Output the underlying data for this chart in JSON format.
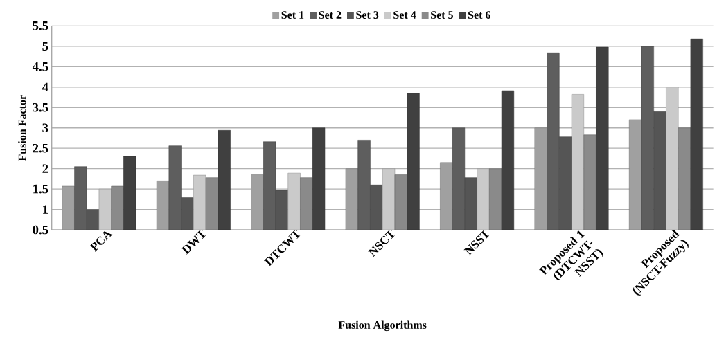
{
  "chart_data": {
    "type": "bar",
    "xlabel": "Fusion Algorithms",
    "ylabel": "Fusion Factor",
    "categories": [
      "PCA",
      "DWT",
      "DTCWT",
      "NSCT",
      "NSST",
      "Proposed 1 (DTCWT-NSST)",
      "Proposed (NSCT-Fuzzy)"
    ],
    "series": [
      {
        "name": "Set 1",
        "color": "#a0a0a0",
        "values": [
          1.57,
          1.7,
          1.85,
          2.0,
          2.15,
          3.0,
          3.2
        ]
      },
      {
        "name": "Set 2",
        "color": "#5e5e5e",
        "values": [
          2.05,
          2.56,
          2.66,
          2.7,
          3.0,
          4.84,
          5.0
        ]
      },
      {
        "name": "Set 3",
        "color": "#555555",
        "values": [
          1.0,
          1.29,
          1.47,
          1.6,
          1.78,
          2.78,
          3.4
        ]
      },
      {
        "name": "Set 4",
        "color": "#cacaca",
        "values": [
          1.5,
          1.84,
          1.89,
          2.0,
          2.0,
          3.82,
          4.0
        ]
      },
      {
        "name": "Set 5",
        "color": "#8a8a8a",
        "values": [
          1.57,
          1.78,
          1.78,
          1.85,
          2.0,
          2.83,
          3.0
        ]
      },
      {
        "name": "Set 6",
        "color": "#404040",
        "values": [
          2.3,
          2.94,
          3.0,
          3.85,
          3.91,
          4.98,
          5.18
        ]
      }
    ],
    "ylim": [
      0.5,
      5.5
    ],
    "yticks": [
      0.5,
      1,
      1.5,
      2,
      2.5,
      3,
      3.5,
      4,
      4.5,
      5,
      5.5
    ],
    "grid": "y",
    "legend": "top"
  }
}
